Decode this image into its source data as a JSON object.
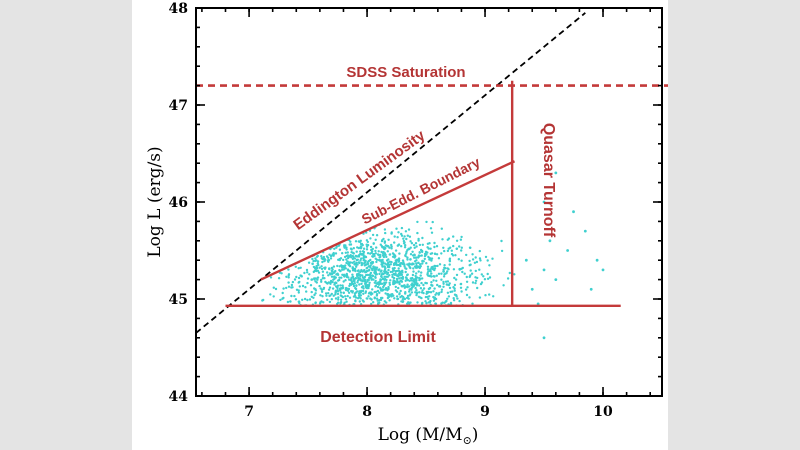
{
  "chart_data": {
    "type": "scatter",
    "title": "",
    "xlabel": "Log (M/M",
    "xlabel_sub": "⊙",
    "xlabel_close": ")",
    "ylabel": "Log L (erg/s)",
    "xlim": [
      6.55,
      10.5
    ],
    "ylim": [
      44,
      48
    ],
    "xticks": [
      "7",
      "8",
      "9",
      "10"
    ],
    "yticks": [
      "44",
      "45",
      "46",
      "47",
      "48"
    ],
    "grid": false,
    "colors": {
      "points": "#3fd0cf",
      "annotations": "#c43a3a",
      "eddington": "#000000"
    },
    "annotations": {
      "sdss_saturation": {
        "label": "SDSS Saturation",
        "y": 47.2
      },
      "eddington": {
        "label": "Eddington Luminosity",
        "x": [
          6.55,
          10.5
        ],
        "y": [
          44.65,
          48.55
        ]
      },
      "sub_edd": {
        "label": "Sub-Edd. Boundary",
        "x": [
          7.1,
          9.25
        ],
        "y": [
          45.2,
          46.42
        ]
      },
      "quasar_turnoff": {
        "label": "Quasar Turnoff",
        "x": 9.23,
        "y": [
          44.93,
          47.25
        ]
      },
      "detection_limit": {
        "label": "Detection Limit",
        "y": 44.93,
        "x": [
          6.8,
          10.15
        ]
      }
    },
    "scatter_region": {
      "x": [
        7.1,
        9.25
      ],
      "y": [
        44.93,
        46.42
      ],
      "center_x": 8.1,
      "center_y": 45.25
    },
    "outliers": {
      "x": [
        9.4,
        9.5,
        9.55,
        9.6,
        9.7,
        9.75,
        9.85,
        9.95,
        9.5,
        9.45,
        9.35,
        9.6,
        9.9,
        10.0,
        9.5
      ],
      "y": [
        45.1,
        45.3,
        45.6,
        45.2,
        45.5,
        45.9,
        45.7,
        45.4,
        46.0,
        44.95,
        45.4,
        46.3,
        45.1,
        45.3,
        44.6
      ]
    }
  }
}
